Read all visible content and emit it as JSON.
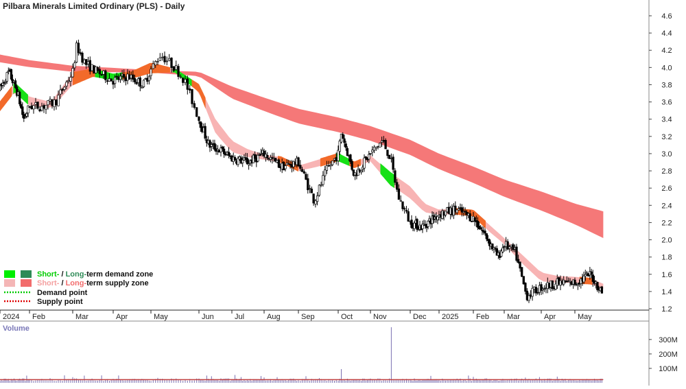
{
  "chart_data": {
    "type": "candlestick",
    "title": "Pilbara Minerals Limited Ordinary (PLS) - Daily",
    "price_axis": {
      "range": [
        1.1,
        4.7
      ],
      "ticks": [
        1.2,
        1.4,
        1.6,
        1.8,
        2.0,
        2.2,
        2.4,
        2.6,
        2.8,
        3.0,
        3.2,
        3.4,
        3.6,
        3.8,
        4.0,
        4.2,
        4.4,
        4.6
      ],
      "position": "right"
    },
    "month_labels": [
      "2024",
      "Feb",
      "Mar",
      "Apr",
      "May",
      "Jun",
      "Jul",
      "Aug",
      "Sep",
      "Oct",
      "Nov",
      "Dec",
      "2025",
      "Feb",
      "Mar",
      "Apr",
      "May"
    ],
    "price_anchors": {
      "x_month_index": [
        0,
        0.3,
        0.6,
        0.8,
        1.0,
        1.3,
        1.6,
        2.0,
        2.1,
        2.3,
        2.6,
        3.0,
        3.4,
        3.8,
        4.2,
        4.5,
        4.7,
        5.0,
        5.3,
        5.6,
        6.0,
        6.5,
        7.0,
        7.5,
        8.0,
        8.4,
        8.7,
        9.0,
        9.1,
        9.5,
        9.8,
        10.3,
        10.5,
        10.7,
        11.0,
        11.4,
        11.8,
        12.0,
        12.5,
        13.0,
        13.4,
        13.8,
        14.0,
        14.3,
        14.6,
        15.0,
        15.5,
        16.0,
        16.5,
        16.9
      ],
      "price": [
        3.75,
        3.95,
        3.7,
        3.4,
        3.55,
        3.55,
        3.6,
        3.95,
        4.25,
        4.05,
        3.95,
        3.85,
        3.9,
        3.8,
        4.15,
        4.0,
        3.85,
        3.4,
        3.1,
        3.05,
        2.95,
        2.9,
        3.0,
        2.85,
        2.9,
        2.45,
        2.8,
        3.0,
        3.25,
        2.75,
        2.9,
        3.15,
        2.95,
        2.5,
        2.2,
        2.15,
        2.25,
        2.3,
        2.35,
        2.25,
        2.05,
        1.8,
        1.95,
        1.85,
        1.35,
        1.45,
        1.5,
        1.5,
        1.6,
        1.36
      ]
    },
    "short_term_zone": {
      "x_month_index": [
        0,
        0.5,
        1.0,
        1.5,
        2.0,
        2.5,
        3.0,
        3.5,
        4.0,
        4.5,
        5.0,
        5.5,
        6.0,
        6.5,
        7.0,
        7.5,
        8.0,
        8.5,
        9.0,
        9.5,
        10.0,
        10.5,
        11.0,
        11.5,
        12.0,
        12.5,
        13.0,
        13.5,
        14.0,
        14.5,
        15.0,
        15.5,
        16.0,
        16.5,
        16.9
      ],
      "upper": [
        3.6,
        3.82,
        3.66,
        3.6,
        3.94,
        3.98,
        3.92,
        3.95,
        4.05,
        3.98,
        3.8,
        3.4,
        3.15,
        3.05,
        2.99,
        2.96,
        2.86,
        2.93,
        3.0,
        2.9,
        2.98,
        2.78,
        2.62,
        2.42,
        2.35,
        2.36,
        2.34,
        2.18,
        2.02,
        1.82,
        1.62,
        1.58,
        1.57,
        1.55,
        1.49
      ],
      "lower": [
        3.5,
        3.72,
        3.56,
        3.52,
        3.8,
        3.9,
        3.86,
        3.88,
        3.94,
        3.95,
        3.72,
        3.24,
        3.02,
        2.96,
        2.93,
        2.9,
        2.8,
        2.85,
        2.92,
        2.84,
        2.91,
        2.64,
        2.48,
        2.32,
        2.29,
        2.3,
        2.28,
        2.1,
        1.95,
        1.72,
        1.52,
        1.5,
        1.5,
        1.49,
        1.43
      ]
    },
    "long_term_zone": {
      "x_month_index": [
        0,
        2,
        4,
        5,
        6,
        8,
        10,
        12,
        14,
        16,
        16.9
      ],
      "upper": [
        4.15,
        4.02,
        3.97,
        3.95,
        3.78,
        3.52,
        3.32,
        3.0,
        2.7,
        2.42,
        2.33
      ],
      "lower": [
        4.06,
        3.95,
        3.94,
        3.9,
        3.64,
        3.35,
        3.15,
        2.82,
        2.5,
        2.18,
        2.02
      ]
    },
    "volume": {
      "label": "Volume",
      "axis_ticks": [
        "100M",
        "200M",
        "300M"
      ],
      "axis_values": [
        100,
        200,
        300
      ],
      "range": [
        0,
        380
      ],
      "baseline": 22,
      "spikes": [
        {
          "month_index": 1.5,
          "value": 32
        },
        {
          "month_index": 4.95,
          "value": 30
        },
        {
          "month_index": 9.1,
          "value": 95
        },
        {
          "month_index": 10.5,
          "value": 385
        },
        {
          "month_index": 14.95,
          "value": 40
        }
      ]
    },
    "legend": {
      "placement": "bottom-left",
      "items": [
        {
          "swatches": [
            "#00ee00",
            "#2e8b57"
          ],
          "parts": [
            "Short-",
            " / ",
            "Long-",
            "term demand zone"
          ],
          "colors": [
            "#00cc00",
            "#111111",
            "#2e8b57",
            "#111111"
          ]
        },
        {
          "swatches": [
            "#f4b6b6",
            "#f26c6c"
          ],
          "parts": [
            "Short-",
            " / ",
            "Long-",
            "term supply zone"
          ],
          "colors": [
            "#f4a0a0",
            "#111111",
            "#f26c6c",
            "#111111"
          ]
        },
        {
          "line_color": "#00cc00",
          "label": "Demand point"
        },
        {
          "line_color": "#dd0000",
          "label": "Supply point"
        }
      ]
    },
    "colors": {
      "up_candle": "#ffffff",
      "down_candle": "#000000",
      "candle_stroke": "#000000",
      "short_supply": "#f8b4b4",
      "long_supply": "#f57878",
      "transition": "#f26a2a",
      "demand_green": "#16e016",
      "volume_bar": "#7a6fb0",
      "volume_avg": "#c04040"
    },
    "grid": false
  }
}
